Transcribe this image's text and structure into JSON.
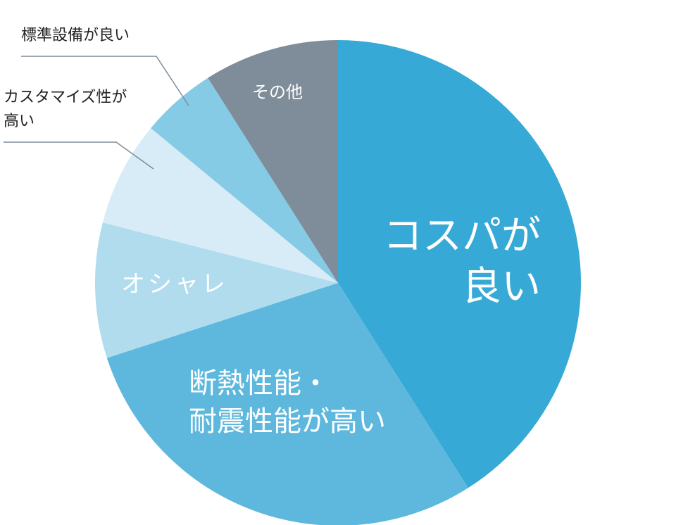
{
  "chart_data": {
    "type": "pie",
    "categories": [
      "コスパが\n良い",
      "断熱性能・\n耐震性能が高い",
      "オシャレ",
      "カスタマイズ性が\n高い",
      "標準設備が良い",
      "その他"
    ],
    "values": [
      41,
      29,
      9,
      7,
      5,
      9
    ],
    "colors": [
      "#36a9d6",
      "#5eb8dd",
      "#b0dcee",
      "#d7ecf6",
      "#86cbe6",
      "#7f8c99"
    ]
  }
}
